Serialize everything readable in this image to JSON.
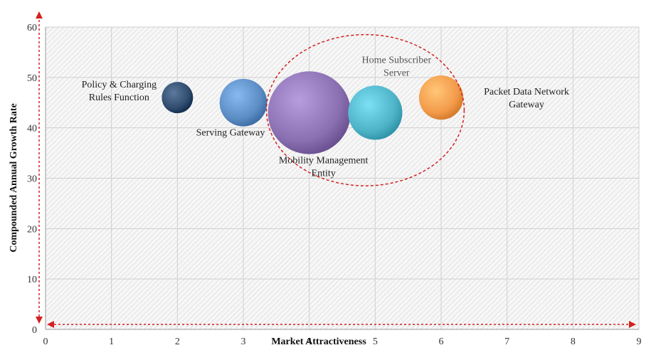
{
  "chart_data": {
    "type": "scatter",
    "subtype": "bubble",
    "xlabel": "Market Attractiveness",
    "ylabel": "Compounded Annual Growth Rate",
    "xlim": [
      0,
      9
    ],
    "ylim": [
      0,
      60
    ],
    "x_ticks": [
      0,
      1,
      2,
      3,
      4,
      5,
      6,
      7,
      8,
      9
    ],
    "y_ticks": [
      0,
      10,
      20,
      30,
      40,
      50,
      60
    ],
    "grid": true,
    "background_pattern": "diagonal-hatch",
    "series": [
      {
        "name": "Policy & Charging Rules Function",
        "label_lines": [
          "Policy & Charging",
          "Rules Function"
        ],
        "x": 2,
        "y": 46,
        "size": 1.0,
        "color": "#2f4b6e"
      },
      {
        "name": "Serving Gateway",
        "label_lines": [
          "Serving Gateway"
        ],
        "x": 3,
        "y": 45,
        "size": 2.3,
        "color": "#5b8cc4"
      },
      {
        "name": "Mobility Management Entity",
        "label_lines": [
          "Mobility Management",
          "Entity"
        ],
        "x": 4,
        "y": 43,
        "size": 7.0,
        "color": "#8a70b0"
      },
      {
        "name": "Home Subscriber Server",
        "label_lines": [
          "Home Subscriber",
          "Server"
        ],
        "x": 5,
        "y": 43,
        "size": 3.0,
        "color": "#4fb3c8"
      },
      {
        "name": "Packet Data Network Gateway",
        "label_lines": [
          "Packet Data Network",
          "Gateway"
        ],
        "x": 6,
        "y": 46,
        "size": 2.0,
        "color": "#f29a4a"
      }
    ],
    "annotations": {
      "highlight_ellipse": {
        "x_center": 4.85,
        "y_center": 43.5,
        "x_radius": 1.5,
        "y_radius": 15.0,
        "color": "#d42020",
        "style": "dashed"
      },
      "axis_arrows": {
        "color": "#d42020",
        "style": "dashed"
      }
    }
  }
}
